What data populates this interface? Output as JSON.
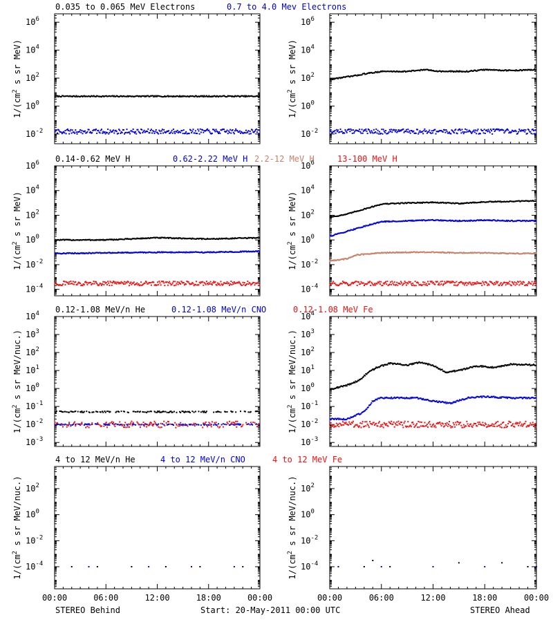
{
  "colors": {
    "black": "#000000",
    "blue": "#0000dd",
    "tan": "#c8806a",
    "red": "#ee1111"
  },
  "rows": [
    {
      "titles": [
        {
          "text": "0.035 to 0.065 MeV Electrons",
          "color": "black"
        },
        {
          "text": "0.7 to 4.0 Mev Electrons",
          "color": "blue"
        }
      ],
      "ylabel_parts": [
        "1/(cm",
        "2",
        " s sr MeV)"
      ],
      "yticks": [
        {
          "base": "10",
          "exp": "6"
        },
        {
          "base": "10",
          "exp": "4"
        },
        {
          "base": "10",
          "exp": "2"
        },
        {
          "base": "10",
          "exp": "0"
        },
        {
          "base": "10",
          "exp": "-2"
        }
      ]
    },
    {
      "titles": [
        {
          "text": "0.14-0.62 MeV H",
          "color": "black"
        },
        {
          "text": "0.62-2.22 MeV H",
          "color": "blue"
        },
        {
          "text": "2.2-12 MeV H",
          "color": "tan"
        },
        {
          "text": "13-100 MeV H",
          "color": "red"
        }
      ],
      "ylabel_parts": [
        "1/(cm",
        "2",
        " s sr MeV)"
      ],
      "yticks": [
        {
          "base": "10",
          "exp": "6"
        },
        {
          "base": "10",
          "exp": "4"
        },
        {
          "base": "10",
          "exp": "2"
        },
        {
          "base": "10",
          "exp": "0"
        },
        {
          "base": "10",
          "exp": "-2"
        },
        {
          "base": "10",
          "exp": "-4"
        }
      ]
    },
    {
      "titles": [
        {
          "text": "0.12-1.08 MeV/n He",
          "color": "black"
        },
        {
          "text": "0.12-1.08 MeV/n CNO",
          "color": "blue"
        },
        {
          "text": "0.12-1.08 MeV Fe",
          "color": "red"
        }
      ],
      "ylabel_parts": [
        "1/(cm",
        "2",
        " s sr MeV/nuc.)"
      ],
      "yticks": [
        {
          "base": "10",
          "exp": "4"
        },
        {
          "base": "10",
          "exp": "3"
        },
        {
          "base": "10",
          "exp": "2"
        },
        {
          "base": "10",
          "exp": "1"
        },
        {
          "base": "10",
          "exp": "0"
        },
        {
          "base": "10",
          "exp": "-1"
        },
        {
          "base": "10",
          "exp": "-2"
        },
        {
          "base": "10",
          "exp": "-3"
        }
      ]
    },
    {
      "titles": [
        {
          "text": "4 to 12 MeV/n He",
          "color": "black"
        },
        {
          "text": "4 to 12 MeV/n CNO",
          "color": "blue"
        },
        {
          "text": "4 to 12 MeV Fe",
          "color": "red"
        }
      ],
      "ylabel_parts": [
        "1/(cm",
        "2",
        " s sr MeV/nuc.)"
      ],
      "yticks": [
        {
          "base": "10",
          "exp": "2"
        },
        {
          "base": "10",
          "exp": "0"
        },
        {
          "base": "10",
          "exp": "-2"
        },
        {
          "base": "10",
          "exp": "-4"
        }
      ]
    }
  ],
  "xticks": [
    "00:00",
    "06:00",
    "12:00",
    "18:00",
    "00:00"
  ],
  "footer": {
    "left": "STEREO Behind",
    "center": "Start: 20-May-2011 00:00 UTC",
    "right": "STEREO Ahead"
  },
  "chart_data": [
    {
      "type": "scatter",
      "row": 0,
      "spacecraft": "STEREO Behind",
      "y_scale": "log",
      "ylim": [
        0.002,
        4000000
      ],
      "xlim_hours": [
        0,
        24
      ],
      "series": [
        {
          "name": "0.035 to 0.065 MeV Electrons",
          "color": "black",
          "points": [
            [
              0,
              5
            ],
            [
              6,
              5
            ],
            [
              12,
              5
            ],
            [
              18,
              5
            ],
            [
              24,
              5
            ]
          ]
        },
        {
          "name": "0.7 to 4.0 Mev Electrons",
          "color": "blue",
          "points": [
            [
              0,
              0.015
            ],
            [
              6,
              0.015
            ],
            [
              12,
              0.015
            ],
            [
              18,
              0.015
            ],
            [
              24,
              0.015
            ]
          ]
        }
      ]
    },
    {
      "type": "scatter",
      "row": 0,
      "spacecraft": "STEREO Ahead",
      "y_scale": "log",
      "ylim": [
        0.002,
        4000000
      ],
      "xlim_hours": [
        0,
        24
      ],
      "series": [
        {
          "name": "0.035 to 0.065 MeV Electrons",
          "color": "black",
          "points": [
            [
              0,
              80
            ],
            [
              1,
              100
            ],
            [
              3,
              150
            ],
            [
              4,
              200
            ],
            [
              6,
              300
            ],
            [
              9,
              300
            ],
            [
              11,
              400
            ],
            [
              13,
              300
            ],
            [
              16,
              300
            ],
            [
              18,
              400
            ],
            [
              21,
              350
            ],
            [
              24,
              400
            ]
          ]
        },
        {
          "name": "0.7 to 4.0 Mev Electrons",
          "color": "blue",
          "points": [
            [
              0,
              0.015
            ],
            [
              6,
              0.015
            ],
            [
              12,
              0.015
            ],
            [
              18,
              0.015
            ],
            [
              24,
              0.015
            ]
          ]
        }
      ]
    },
    {
      "type": "scatter",
      "row": 1,
      "spacecraft": "STEREO Behind",
      "y_scale": "log",
      "ylim": [
        3e-05,
        1000000
      ],
      "xlim_hours": [
        0,
        24
      ],
      "series": [
        {
          "name": "0.14-0.62 MeV H",
          "color": "black",
          "points": [
            [
              0,
              1
            ],
            [
              6,
              1
            ],
            [
              12,
              1.5
            ],
            [
              18,
              1.2
            ],
            [
              24,
              1.5
            ]
          ]
        },
        {
          "name": "0.62-2.22 MeV H",
          "color": "blue",
          "points": [
            [
              0,
              0.08
            ],
            [
              6,
              0.09
            ],
            [
              12,
              0.1
            ],
            [
              18,
              0.1
            ],
            [
              24,
              0.12
            ]
          ]
        },
        {
          "name": "13-100 MeV H",
          "color": "red",
          "points": [
            [
              0,
              0.0003
            ],
            [
              6,
              0.0003
            ],
            [
              12,
              0.0003
            ],
            [
              18,
              0.0003
            ],
            [
              24,
              0.0003
            ]
          ]
        }
      ]
    },
    {
      "type": "scatter",
      "row": 1,
      "spacecraft": "STEREO Ahead",
      "y_scale": "log",
      "ylim": [
        3e-05,
        1000000
      ],
      "xlim_hours": [
        0,
        24
      ],
      "series": [
        {
          "name": "0.14-0.62 MeV H",
          "color": "black",
          "points": [
            [
              0,
              70
            ],
            [
              2,
              120
            ],
            [
              3,
              200
            ],
            [
              5,
              500
            ],
            [
              6,
              800
            ],
            [
              9,
              1000
            ],
            [
              12,
              1100
            ],
            [
              15,
              900
            ],
            [
              18,
              1200
            ],
            [
              21,
              1300
            ],
            [
              24,
              1500
            ]
          ]
        },
        {
          "name": "0.62-2.22 MeV H",
          "color": "blue",
          "points": [
            [
              0,
              2
            ],
            [
              2,
              5
            ],
            [
              3,
              8
            ],
            [
              5,
              20
            ],
            [
              6,
              30
            ],
            [
              9,
              35
            ],
            [
              12,
              40
            ],
            [
              15,
              35
            ],
            [
              18,
              40
            ],
            [
              21,
              35
            ],
            [
              24,
              35
            ]
          ]
        },
        {
          "name": "2.2-12 MeV H",
          "color": "tan",
          "points": [
            [
              0,
              0.02
            ],
            [
              2,
              0.03
            ],
            [
              3,
              0.06
            ],
            [
              6,
              0.09
            ],
            [
              9,
              0.1
            ],
            [
              12,
              0.1
            ],
            [
              15,
              0.09
            ],
            [
              18,
              0.09
            ],
            [
              21,
              0.08
            ],
            [
              24,
              0.08
            ]
          ]
        },
        {
          "name": "13-100 MeV H",
          "color": "red",
          "points": [
            [
              0,
              0.0003
            ],
            [
              6,
              0.0003
            ],
            [
              12,
              0.0003
            ],
            [
              18,
              0.0003
            ],
            [
              24,
              0.0003
            ]
          ]
        }
      ]
    },
    {
      "type": "scatter",
      "row": 2,
      "spacecraft": "STEREO Behind",
      "y_scale": "log",
      "ylim": [
        0.0006,
        10000
      ],
      "xlim_hours": [
        0,
        24
      ],
      "series": [
        {
          "name": "0.12-1.08 MeV/n He",
          "color": "black",
          "points": [
            [
              0,
              0.05
            ],
            [
              6,
              0.05
            ],
            [
              12,
              0.05
            ],
            [
              18,
              0.05
            ],
            [
              24,
              0.05
            ]
          ]
        },
        {
          "name": "0.12-1.08 MeV/n CNO",
          "color": "blue",
          "points": [
            [
              0,
              0.01
            ],
            [
              6,
              0.01
            ],
            [
              12,
              0.01
            ],
            [
              18,
              0.01
            ],
            [
              24,
              0.01
            ]
          ]
        },
        {
          "name": "0.12-1.08 MeV Fe",
          "color": "red",
          "points": [
            [
              0,
              0.01
            ],
            [
              6,
              0.01
            ],
            [
              12,
              0.01
            ],
            [
              18,
              0.01
            ],
            [
              24,
              0.01
            ]
          ]
        }
      ]
    },
    {
      "type": "scatter",
      "row": 2,
      "spacecraft": "STEREO Ahead",
      "y_scale": "log",
      "ylim": [
        0.0006,
        10000
      ],
      "xlim_hours": [
        0,
        24
      ],
      "series": [
        {
          "name": "0.12-1.08 MeV/n He",
          "color": "black",
          "points": [
            [
              0,
              0.9
            ],
            [
              2,
              1.5
            ],
            [
              3.5,
              3
            ],
            [
              4.5,
              8
            ],
            [
              5.5,
              15
            ],
            [
              7,
              25
            ],
            [
              9,
              20
            ],
            [
              10.5,
              28
            ],
            [
              12,
              20
            ],
            [
              13.5,
              8
            ],
            [
              15,
              10
            ],
            [
              17,
              18
            ],
            [
              19,
              15
            ],
            [
              21,
              22
            ],
            [
              24,
              20
            ]
          ]
        },
        {
          "name": "0.12-1.08 MeV/n CNO",
          "color": "blue",
          "points": [
            [
              0,
              0.02
            ],
            [
              2,
              0.02
            ],
            [
              4,
              0.05
            ],
            [
              5,
              0.2
            ],
            [
              6,
              0.3
            ],
            [
              8,
              0.3
            ],
            [
              10,
              0.3
            ],
            [
              12,
              0.2
            ],
            [
              14,
              0.15
            ],
            [
              16,
              0.3
            ],
            [
              18,
              0.35
            ],
            [
              21,
              0.3
            ],
            [
              24,
              0.3
            ]
          ]
        },
        {
          "name": "0.12-1.08 MeV Fe",
          "color": "red",
          "points": [
            [
              0,
              0.01
            ],
            [
              6,
              0.01
            ],
            [
              12,
              0.01
            ],
            [
              18,
              0.01
            ],
            [
              24,
              0.01
            ]
          ]
        }
      ]
    },
    {
      "type": "scatter",
      "row": 3,
      "spacecraft": "STEREO Behind",
      "y_scale": "log",
      "ylim": [
        2e-06,
        5000
      ],
      "xlim_hours": [
        0,
        24
      ],
      "series": [
        {
          "name": "4 to 12 MeV/n He",
          "color": "black",
          "points": [
            [
              2,
              0.0001
            ],
            [
              5,
              0.0001
            ],
            [
              9,
              0.0001
            ],
            [
              13,
              0.0001
            ],
            [
              17,
              0.0001
            ],
            [
              22,
              0.0001
            ]
          ]
        },
        {
          "name": "4 to 12 MeV/n CNO",
          "color": "blue",
          "points": [
            [
              4,
              0.0001
            ],
            [
              11,
              0.0001
            ],
            [
              16,
              0.0001
            ],
            [
              21,
              0.0001
            ]
          ]
        }
      ]
    },
    {
      "type": "scatter",
      "row": 3,
      "spacecraft": "STEREO Ahead",
      "y_scale": "log",
      "ylim": [
        2e-06,
        5000
      ],
      "xlim_hours": [
        0,
        24
      ],
      "series": [
        {
          "name": "4 to 12 MeV/n He",
          "color": "black",
          "points": [
            [
              1,
              0.0001
            ],
            [
              4,
              0.0001
            ],
            [
              5,
              0.0003
            ],
            [
              7,
              0.0001
            ],
            [
              12,
              0.0001
            ],
            [
              15,
              0.0002
            ],
            [
              20,
              0.0002
            ],
            [
              23,
              0.0001
            ]
          ]
        },
        {
          "name": "4 to 12 MeV/n CNO",
          "color": "blue",
          "points": [
            [
              1,
              0.0001
            ],
            [
              6,
              0.0001
            ],
            [
              12,
              0.0001
            ],
            [
              18,
              0.0001
            ],
            [
              24,
              0.0001
            ]
          ]
        }
      ]
    }
  ]
}
